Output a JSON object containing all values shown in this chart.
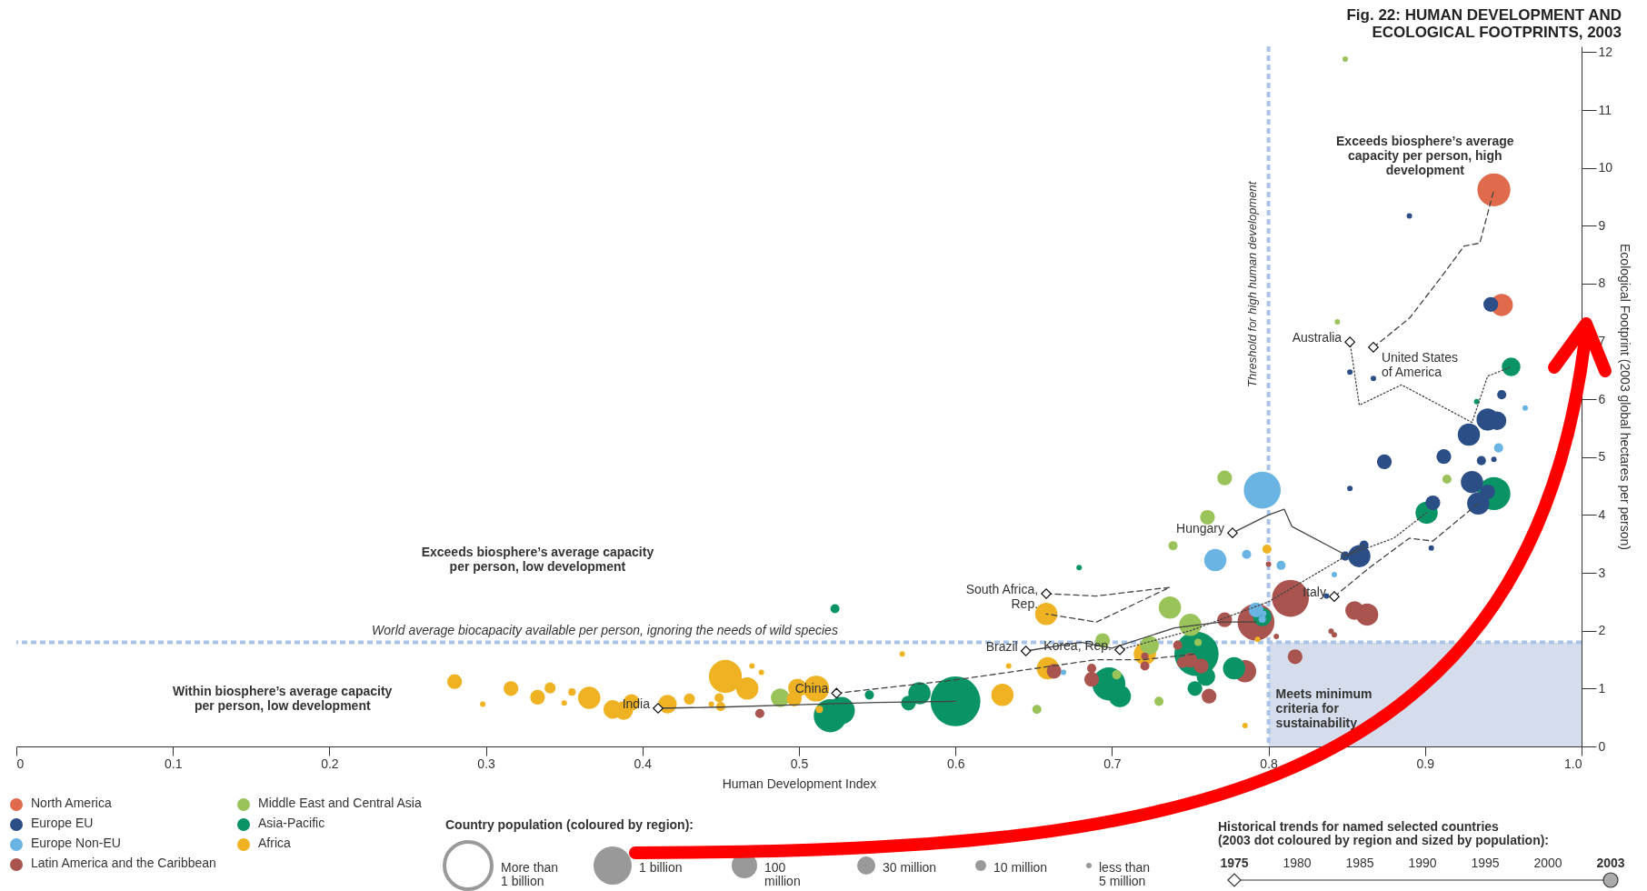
{
  "chart_data": {
    "type": "bubble",
    "title": "Fig. 22: HUMAN DEVELOPMENT AND ECOLOGICAL FOOTPRINTS, 2003",
    "xlabel": "Human Development Index",
    "ylabel": "Ecological Footprint (2003 global hectares per person)",
    "xlim": [
      0,
      1
    ],
    "ylim": [
      0,
      12.1
    ],
    "xticks": [
      0,
      0.1,
      0.2,
      0.3,
      0.4,
      0.5,
      0.6,
      0.7,
      0.8,
      0.9,
      {
        "value": 1,
        "label": "1.0"
      }
    ],
    "yticks": [
      0,
      1,
      2,
      3,
      4,
      5,
      6,
      7,
      8,
      9,
      10,
      11,
      12
    ],
    "legend": "bottom left",
    "series": [
      {
        "name": "North America",
        "color": "#df6a4c",
        "x": [
          0.944,
          0.949
        ],
        "values": [
          9.62,
          7.63
        ],
        "sizes": [
          0.44,
          0.2
        ]
      },
      {
        "name": "Europe EU",
        "color": "#2c4e87",
        "x": [
          0.89,
          0.852,
          0.867,
          0.852,
          0.874,
          0.858,
          0.861,
          0.849,
          0.904,
          0.905,
          0.912,
          0.928,
          0.94,
          0.946,
          0.936,
          0.944,
          0.949,
          0.93,
          0.934,
          0.942,
          0.837,
          0.94
        ],
        "values": [
          9.17,
          6.47,
          6.36,
          4.46,
          4.92,
          3.29,
          3.48,
          3.29,
          3.43,
          4.21,
          5.01,
          5.39,
          5.65,
          5.63,
          4.94,
          4.96,
          6.08,
          4.57,
          4.2,
          7.64,
          2.6,
          4.4
        ],
        "sizes": [
          0.012,
          0.012,
          0.012,
          0.012,
          0.088,
          0.2,
          0.034,
          0.034,
          0.012,
          0.088,
          0.088,
          0.2,
          0.2,
          0.14,
          0.034,
          0.012,
          0.034,
          0.2,
          0.2,
          0.088,
          0.012,
          0.088
        ]
      },
      {
        "name": "Europe Non-EU",
        "color": "#6ab4e3",
        "x": [
          0.796,
          0.766,
          0.786,
          0.808,
          0.792,
          0.797,
          0.669,
          0.842,
          0.947,
          0.964,
          0.796
        ],
        "values": [
          4.43,
          3.22,
          3.32,
          3.13,
          2.36,
          2.3,
          1.28,
          2.97,
          5.16,
          5.85,
          2.2
        ],
        "sizes": [
          0.55,
          0.2,
          0.034,
          0.034,
          0.088,
          0.012,
          0.012,
          0.012,
          0.034,
          0.012,
          0.022
        ]
      },
      {
        "name": "Latin America and the Caribbean",
        "color": "#a9544f",
        "x": [
          0.814,
          0.792,
          0.785,
          0.817,
          0.863,
          0.855,
          0.84,
          0.842,
          0.762,
          0.757,
          0.75,
          0.742,
          0.687,
          0.687,
          0.663,
          0.721,
          0.721,
          0.772,
          0.475,
          0.8,
          0.805,
          0.745
        ],
        "values": [
          2.56,
          2.15,
          1.3,
          1.55,
          2.28,
          2.35,
          1.99,
          1.93,
          0.87,
          1.39,
          1.49,
          1.75,
          1.35,
          1.16,
          1.3,
          1.39,
          1.56,
          2.19,
          0.57,
          3.15,
          1.9,
          1.45
        ],
        "sizes": [
          0.55,
          0.55,
          0.2,
          0.088,
          0.2,
          0.14,
          0.012,
          0.012,
          0.088,
          0.088,
          0.088,
          0.034,
          0.034,
          0.088,
          0.088,
          0.034,
          0.022,
          0.088,
          0.034,
          0.012,
          0.012,
          0.05
        ]
      },
      {
        "name": "Middle East and Central Asia",
        "color": "#9ac45a",
        "x": [
          0.488,
          0.652,
          0.694,
          0.73,
          0.737,
          0.739,
          0.75,
          0.761,
          0.772,
          0.849,
          0.844,
          0.914,
          0.703,
          0.724,
          0.755
        ],
        "values": [
          0.84,
          0.64,
          1.83,
          0.78,
          2.4,
          3.47,
          2.1,
          3.96,
          4.64,
          11.88,
          7.34,
          4.62,
          1.24,
          1.75,
          1.8
        ],
        "sizes": [
          0.14,
          0.034,
          0.088,
          0.034,
          0.2,
          0.034,
          0.2,
          0.088,
          0.088,
          0.012,
          0.012,
          0.034,
          0.034,
          0.14,
          0.022
        ]
      },
      {
        "name": "Asia-Pacific",
        "color": "#0a9466",
        "x": [
          0.523,
          0.52,
          0.527,
          0.545,
          0.57,
          0.577,
          0.6,
          0.679,
          0.698,
          0.705,
          0.754,
          0.753,
          0.76,
          0.778,
          0.796,
          0.901,
          0.944,
          0.955,
          0.933
        ],
        "values": [
          2.38,
          0.53,
          0.62,
          0.89,
          0.75,
          0.92,
          0.78,
          3.09,
          1.08,
          0.87,
          1.6,
          1.0,
          1.21,
          1.35,
          2.24,
          4.04,
          4.37,
          6.56,
          5.96
        ],
        "sizes": [
          0.034,
          0.44,
          0.3,
          0.034,
          0.088,
          0.2,
          1,
          0.012,
          0.44,
          0.2,
          0.79,
          0.088,
          0.14,
          0.2,
          0.14,
          0.2,
          0.44,
          0.14,
          0.012
        ]
      },
      {
        "name": "Africa",
        "color": "#eeb222",
        "x": [
          0.28,
          0.298,
          0.316,
          0.333,
          0.341,
          0.35,
          0.355,
          0.366,
          0.381,
          0.388,
          0.393,
          0.416,
          0.43,
          0.453,
          0.449,
          0.45,
          0.444,
          0.467,
          0.47,
          0.476,
          0.499,
          0.497,
          0.511,
          0.513,
          0.63,
          0.659,
          0.658,
          0.634,
          0.566,
          0.721,
          0.799,
          0.785,
          0.793
        ],
        "values": [
          1.12,
          0.73,
          1.0,
          0.85,
          1.01,
          0.75,
          0.94,
          0.84,
          0.64,
          0.62,
          0.76,
          0.73,
          0.82,
          1.21,
          0.84,
          0.69,
          0.73,
          1.0,
          1.39,
          1.28,
          1.01,
          0.82,
          1.0,
          0.64,
          0.89,
          1.35,
          2.29,
          1.39,
          1.6,
          1.6,
          3.41,
          0.36,
          1.85
        ],
        "sizes": [
          0.088,
          0.012,
          0.088,
          0.088,
          0.05,
          0.012,
          0.022,
          0.2,
          0.14,
          0.14,
          0.11,
          0.14,
          0.05,
          0.44,
          0.034,
          0.034,
          0.012,
          0.2,
          0.012,
          0.012,
          0.14,
          0.088,
          0.27,
          0.022,
          0.2,
          0.2,
          0.2,
          0.012,
          0.012,
          0.2,
          0.034,
          0.012,
          0.012
        ]
      },
      {
        "type": "line",
        "name": "India",
        "color": "#444444",
        "line_style": "solid",
        "x": [
          0.41,
          0.45,
          0.5,
          0.55,
          0.6
        ],
        "values": [
          0.66,
          0.68,
          0.72,
          0.76,
          0.78
        ]
      },
      {
        "type": "line",
        "name": "China",
        "color": "#444444",
        "line_style": "dashed",
        "x": [
          0.524,
          0.6,
          0.69,
          0.72,
          0.754
        ],
        "values": [
          0.92,
          1.15,
          1.5,
          1.5,
          1.6
        ]
      },
      {
        "type": "line",
        "name": "Brazil",
        "color": "#444444",
        "line_style": "solid",
        "x": [
          0.645,
          0.68,
          0.7,
          0.74,
          0.77,
          0.792
        ],
        "values": [
          1.65,
          1.8,
          1.7,
          2.05,
          2.15,
          2.15
        ]
      },
      {
        "type": "line",
        "name": "Korea, Rep.",
        "color": "#444444",
        "line_style": "dotted",
        "x": [
          0.705,
          0.75,
          0.8,
          0.85,
          0.88,
          0.901
        ],
        "values": [
          1.67,
          2.0,
          2.5,
          3.3,
          3.6,
          4.04
        ]
      },
      {
        "type": "line",
        "name": "South Africa, Rep.",
        "color": "#444444",
        "line_style": "dashed",
        "x": [
          0.658,
          0.69,
          0.737,
          0.69,
          0.658
        ],
        "values": [
          2.64,
          2.6,
          2.75,
          2.15,
          2.29
        ]
      },
      {
        "type": "line",
        "name": "Hungary",
        "color": "#444444",
        "line_style": "solid",
        "x": [
          0.777,
          0.8,
          0.81,
          0.815,
          0.85,
          0.861
        ],
        "values": [
          3.69,
          4.0,
          4.1,
          3.8,
          3.3,
          3.48
        ]
      },
      {
        "type": "line",
        "name": "Italy",
        "color": "#444444",
        "line_style": "dashed",
        "x": [
          0.842,
          0.865,
          0.89,
          0.905,
          0.925,
          0.934
        ],
        "values": [
          2.59,
          3.1,
          3.6,
          3.55,
          4.0,
          4.2
        ]
      },
      {
        "type": "line",
        "name": "United States of America",
        "color": "#444444",
        "line_style": "dashed",
        "x": [
          0.867,
          0.89,
          0.91,
          0.925,
          0.935,
          0.944
        ],
        "values": [
          6.9,
          7.4,
          8.1,
          8.65,
          8.7,
          9.62
        ]
      },
      {
        "type": "line",
        "name": "Australia",
        "color": "#444444",
        "line_style": "dotted",
        "x": [
          0.852,
          0.858,
          0.885,
          0.93,
          0.94,
          0.955
        ],
        "values": [
          6.99,
          5.9,
          6.25,
          5.6,
          6.4,
          6.56
        ]
      }
    ],
    "ref_lines": [
      {
        "axis": "y",
        "value": 1.8,
        "label": "World average biocapacity available per person, ignoring the needs of wild species",
        "color": "#a9c4e6",
        "line_style": "dashed"
      },
      {
        "axis": "x",
        "value": 0.8,
        "label": "Threshold for high human development",
        "color": "#a9c4e6",
        "line_style": "dashed"
      }
    ],
    "bands": [
      {
        "axis": "x",
        "from": 0.8,
        "to": 1,
        "label": "Meets minimum criteria for sustainability",
        "color": "#d5dcec"
      }
    ],
    "annotations": [
      "Exceeds biosphere’s average capacity per person, low development",
      "Within biosphere’s average capacity per person, low development",
      "Exceeds biosphere’s average capacity per person, high development",
      "Country population (coloured by region):",
      "More than 1 billion",
      "1 billion",
      "100 million",
      "30 million",
      "10 million",
      "less than 5 million",
      "Historical trends for named selected countries (2003 dot coloured by region and sized by population):",
      "1975",
      "1980",
      "1985",
      "1990",
      "1995",
      "2000",
      "2003"
    ]
  }
}
